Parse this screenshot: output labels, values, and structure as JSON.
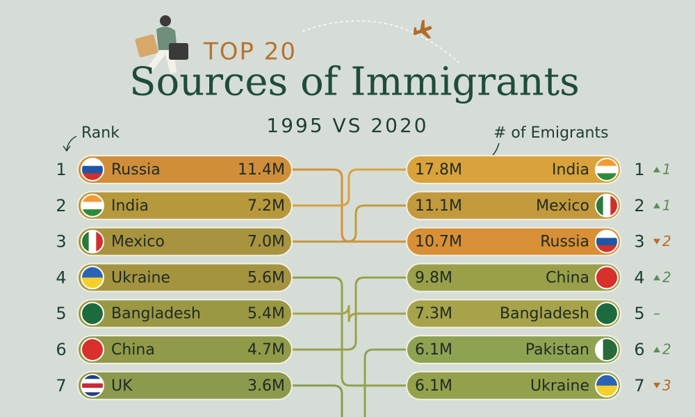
{
  "header": {
    "kicker": "TOP 20",
    "title": "Sources of Immigrants",
    "subtitle": "1995 VS 2020",
    "rank_label": "Rank",
    "emigrants_label": "# of Emigrants"
  },
  "left": {
    "rows": [
      {
        "rank": 1,
        "country": "Russia",
        "value": "11.4M",
        "color": "#d08e3a",
        "flag": {
          "dir": "h",
          "stripes": [
            "#ffffff",
            "#1f57a8",
            "#d3302a"
          ]
        }
      },
      {
        "rank": 2,
        "country": "India",
        "value": "7.2M",
        "color": "#b7993d",
        "flag": {
          "dir": "h",
          "stripes": [
            "#f29a33",
            "#ffffff",
            "#2f8a3a"
          ]
        }
      },
      {
        "rank": 3,
        "country": "Mexico",
        "value": "7.0M",
        "color": "#a8933f",
        "flag": {
          "dir": "v",
          "stripes": [
            "#2b7a3c",
            "#ffffff",
            "#cf2f2b"
          ]
        }
      },
      {
        "rank": 4,
        "country": "Ukraine",
        "value": "5.6M",
        "color": "#a49440",
        "flag": {
          "dir": "h",
          "stripes": [
            "#2a63b4",
            "#f6cf2a"
          ]
        }
      },
      {
        "rank": 5,
        "country": "Bangladesh",
        "value": "5.4M",
        "color": "#9b9844",
        "flag": {
          "dir": "h",
          "stripes": [
            "#1d6a3e"
          ]
        }
      },
      {
        "rank": 6,
        "country": "China",
        "value": "4.7M",
        "color": "#919a48",
        "flag": {
          "dir": "h",
          "stripes": [
            "#d8302a"
          ]
        }
      },
      {
        "rank": 7,
        "country": "UK",
        "value": "3.6M",
        "color": "#8b9a4d",
        "flag": {
          "dir": "h",
          "stripes": [
            "#23407f",
            "#ffffff",
            "#c92a35",
            "#ffffff",
            "#23407f"
          ]
        }
      }
    ]
  },
  "right": {
    "rows": [
      {
        "rank": 1,
        "country": "India",
        "value": "17.8M",
        "change": "1",
        "direction": "up",
        "color": "#d9a23b",
        "flag": {
          "dir": "h",
          "stripes": [
            "#f29a33",
            "#ffffff",
            "#2f8a3a"
          ]
        }
      },
      {
        "rank": 2,
        "country": "Mexico",
        "value": "11.1M",
        "change": "1",
        "direction": "up",
        "color": "#c3993d",
        "flag": {
          "dir": "v",
          "stripes": [
            "#2b7a3c",
            "#ffffff",
            "#cf2f2b"
          ]
        }
      },
      {
        "rank": 3,
        "country": "Russia",
        "value": "10.7M",
        "change": "2",
        "direction": "down",
        "color": "#d88f35",
        "flag": {
          "dir": "h",
          "stripes": [
            "#ffffff",
            "#1f57a8",
            "#d3302a"
          ]
        }
      },
      {
        "rank": 4,
        "country": "China",
        "value": "9.8M",
        "change": "2",
        "direction": "up",
        "color": "#9aa049",
        "flag": {
          "dir": "h",
          "stripes": [
            "#d8302a"
          ]
        }
      },
      {
        "rank": 5,
        "country": "Bangladesh",
        "value": "7.3M",
        "change": "–",
        "direction": "none",
        "color": "#a6a34a",
        "flag": {
          "dir": "h",
          "stripes": [
            "#1d6a3e"
          ]
        }
      },
      {
        "rank": 6,
        "country": "Pakistan",
        "value": "6.1M",
        "change": "2",
        "direction": "up",
        "color": "#8ea352",
        "flag": {
          "dir": "v",
          "stripes": [
            "#ffffff",
            "#2a6b3a",
            "#2a6b3a"
          ]
        }
      },
      {
        "rank": 7,
        "country": "Ukraine",
        "value": "6.1M",
        "change": "3",
        "direction": "down",
        "color": "#93a14c",
        "flag": {
          "dir": "h",
          "stripes": [
            "#2a63b4",
            "#f6cf2a"
          ]
        }
      }
    ]
  }
}
